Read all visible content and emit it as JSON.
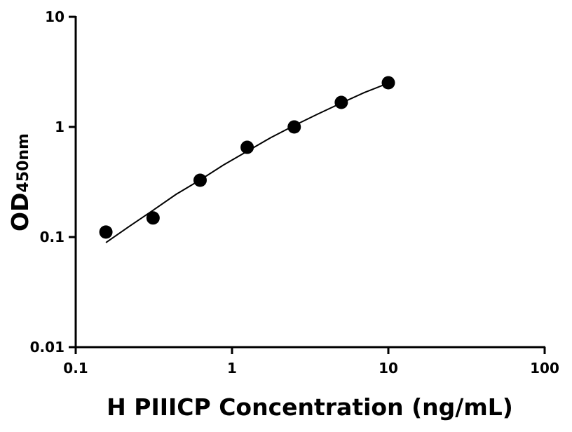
{
  "chart_data": {
    "type": "scatter",
    "title": "",
    "xlabel": "H PIIICP Concentration (ng/mL)",
    "ylabel_main": "OD",
    "ylabel_sub": "450nm",
    "x_scale": "log",
    "y_scale": "log",
    "xlim": [
      0.1,
      100
    ],
    "ylim": [
      0.01,
      10
    ],
    "x_ticks": [
      0.1,
      1,
      10,
      100
    ],
    "x_tick_labels": [
      "0.1",
      "1",
      "10",
      "100"
    ],
    "y_ticks": [
      0.01,
      0.1,
      1,
      10
    ],
    "y_tick_labels": [
      "0.01",
      "0.1",
      "1",
      "10"
    ],
    "grid": false,
    "points": {
      "x": [
        0.156,
        0.3125,
        0.625,
        1.25,
        2.5,
        5,
        10
      ],
      "y": [
        0.111,
        0.149,
        0.328,
        0.653,
        1.0,
        1.67,
        2.52
      ]
    },
    "fit_curve": {
      "x": [
        0.156,
        0.22,
        0.3125,
        0.44,
        0.625,
        0.88,
        1.25,
        1.77,
        2.5,
        3.5,
        5,
        7,
        10
      ],
      "y": [
        0.089,
        0.125,
        0.175,
        0.245,
        0.33,
        0.45,
        0.6,
        0.8,
        1.03,
        1.3,
        1.65,
        2.05,
        2.5
      ]
    },
    "colors": {
      "points": "#000000",
      "curve": "#000000",
      "axes": "#000000"
    }
  }
}
